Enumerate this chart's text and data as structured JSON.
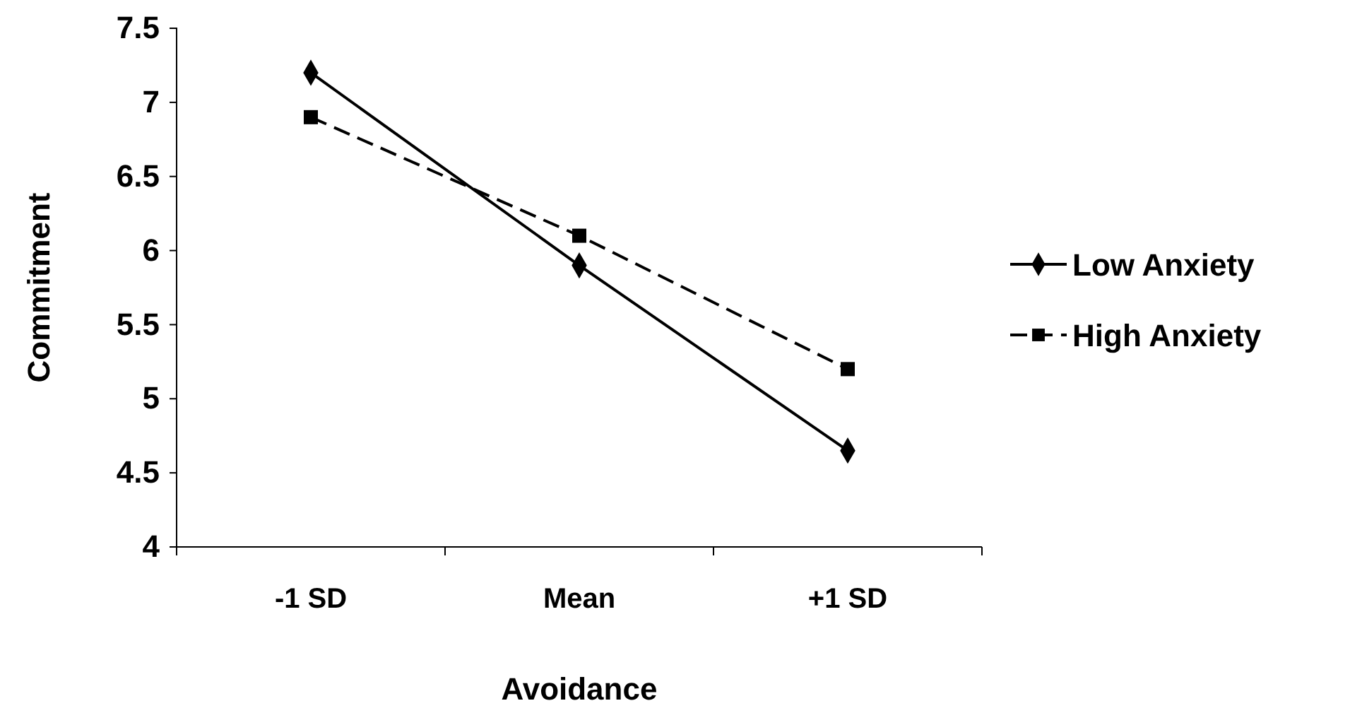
{
  "chart_data": {
    "type": "line",
    "xlabel": "Avoidance",
    "ylabel": "Commitment",
    "categories": [
      "-1 SD",
      "Mean",
      "+1 SD"
    ],
    "ylim": [
      4,
      7.5
    ],
    "yticks": [
      4,
      4.5,
      5,
      5.5,
      6,
      6.5,
      7,
      7.5
    ],
    "grid": false,
    "legend": "right",
    "series": [
      {
        "name": "Low Anxiety",
        "color": "#000000",
        "values": [
          7.2,
          5.9,
          4.65
        ],
        "marker": "diamond",
        "line_style": "solid"
      },
      {
        "name": "High Anxiety",
        "color": "#000000",
        "values": [
          6.9,
          6.1,
          5.2
        ],
        "marker": "square",
        "line_style": "dashed"
      }
    ]
  }
}
